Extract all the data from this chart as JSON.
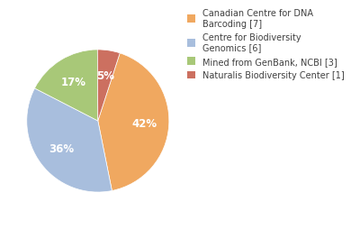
{
  "labels": [
    "Canadian Centre for DNA\nBarcoding [7]",
    "Centre for Biodiversity\nGenomics [6]",
    "Mined from GenBank, NCBI [3]",
    "Naturalis Biodiversity Center [1]"
  ],
  "values": [
    41,
    35,
    17,
    5
  ],
  "colors": [
    "#f0a860",
    "#a8bedd",
    "#a8c878",
    "#cc7060"
  ],
  "startangle": 72,
  "background_color": "#ffffff",
  "text_color": "#404040",
  "pct_fontsize": 8.5,
  "legend_fontsize": 7.0
}
